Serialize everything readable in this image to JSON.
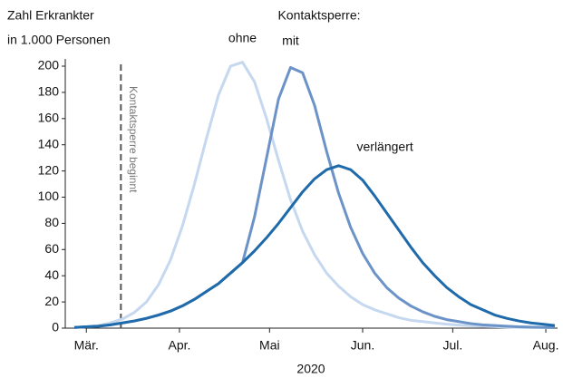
{
  "chart_data": {
    "type": "line",
    "ylabel": [
      "Zahl Erkrankter",
      "in 1.000 Personen"
    ],
    "xlabel": "2020",
    "legend_title": "Kontaktsperre:",
    "x": [
      -4,
      0,
      4,
      8,
      12,
      16,
      20,
      24,
      28,
      32,
      36,
      40,
      44,
      48,
      52,
      56,
      60,
      64,
      68,
      72,
      76,
      80,
      84,
      88,
      92,
      96,
      100,
      104,
      108,
      112,
      116,
      120,
      124,
      128,
      132,
      136,
      140,
      144,
      148,
      152,
      156
    ],
    "series": [
      {
        "name": "ohne",
        "color": "#c5d8ef",
        "values": [
          0.5,
          1,
          2,
          4,
          7,
          12,
          20,
          33,
          52,
          78,
          110,
          145,
          178,
          200,
          203,
          188,
          160,
          128,
          98,
          74,
          56,
          42,
          32,
          24,
          18,
          14,
          11,
          8,
          6,
          5,
          4,
          3,
          2.3,
          1.8,
          1.4,
          1.1,
          0.8,
          0.6,
          0.5,
          0.4,
          0.3
        ]
      },
      {
        "name": "mit",
        "color": "#6b93c8",
        "values": [
          0.5,
          1,
          1.5,
          2.5,
          4,
          5.5,
          7.5,
          10,
          13,
          17,
          22,
          28,
          34,
          42,
          50,
          85,
          130,
          175,
          199,
          195,
          170,
          135,
          103,
          77,
          57,
          42,
          31,
          23,
          17,
          12.5,
          9,
          6.5,
          5,
          3.5,
          2.5,
          2,
          1.5,
          1,
          0.8,
          0.6,
          0.4
        ]
      },
      {
        "name": "verlängert",
        "color": "#1f6aaa",
        "values": [
          0.5,
          1,
          1.5,
          2.5,
          4,
          5.5,
          7.5,
          10,
          13,
          17,
          22,
          28,
          34,
          42,
          50,
          59,
          69,
          80,
          92,
          104,
          114,
          121,
          124,
          121,
          113,
          101,
          88,
          75,
          62,
          50,
          40,
          31,
          24,
          18,
          14,
          10,
          7.5,
          5.5,
          4,
          3,
          2
        ]
      }
    ],
    "annotation": {
      "text": "Kontaktsperre beginnt",
      "x": 11.5
    },
    "xlim": [
      -4,
      156
    ],
    "xticks": [
      {
        "value": 0,
        "label": "Mär."
      },
      {
        "value": 31,
        "label": "Apr."
      },
      {
        "value": 61,
        "label": "Mai"
      },
      {
        "value": 92,
        "label": "Jun."
      },
      {
        "value": 122,
        "label": "Jul."
      },
      {
        "value": 153,
        "label": "Aug."
      }
    ],
    "ylim": [
      0,
      200
    ],
    "yticks": [
      0,
      20,
      40,
      60,
      80,
      100,
      120,
      140,
      160,
      180,
      200
    ],
    "grid": false
  }
}
